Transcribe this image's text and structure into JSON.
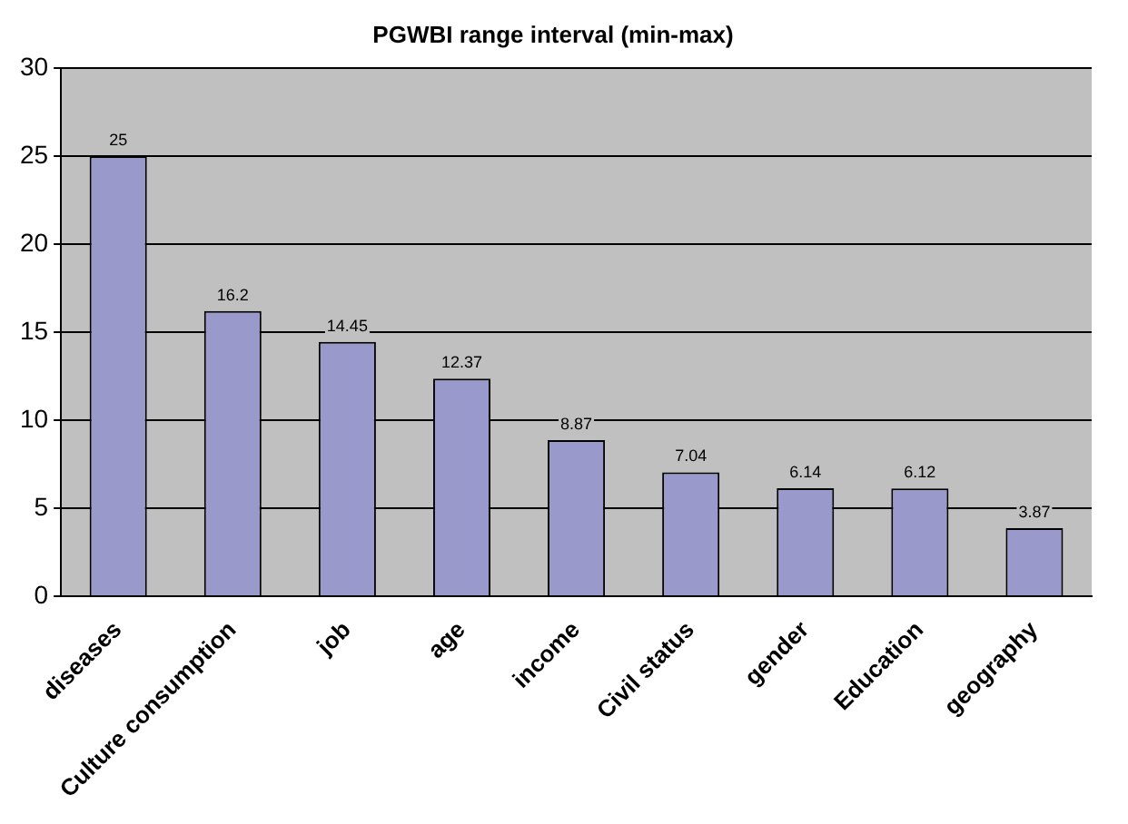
{
  "chart_data": {
    "type": "bar",
    "title": "PGWBI range interval (min-max)",
    "categories": [
      "diseases",
      "Culture consumption",
      "job",
      "age",
      "income",
      "Civil status",
      "gender",
      "Education",
      "geography"
    ],
    "values": [
      25,
      16.2,
      14.45,
      12.37,
      8.87,
      7.04,
      6.14,
      6.12,
      3.87
    ],
    "color": "#9999cc",
    "ylim": [
      0,
      30
    ],
    "yticks": [
      0,
      5,
      10,
      15,
      20,
      25,
      30
    ],
    "grid": "y",
    "data_labels": true,
    "legend": false
  }
}
